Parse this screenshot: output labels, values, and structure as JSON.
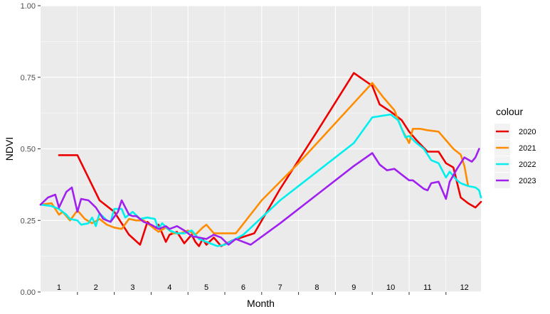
{
  "chart_data": {
    "type": "line",
    "xlabel": "Month",
    "ylabel": "NDVI",
    "ylim": [
      0,
      1
    ],
    "y_ticks": [
      "0.00",
      "0.25",
      "0.50",
      "0.75",
      "1.00"
    ],
    "y_tick_values": [
      0,
      0.25,
      0.5,
      0.75,
      1
    ],
    "xlim": [
      0.5,
      12.45
    ],
    "month_labels": [
      "1",
      "2",
      "3",
      "4",
      "5",
      "6",
      "7",
      "8",
      "9",
      "10",
      "11",
      "12"
    ],
    "legend_title": "colour",
    "legend_position": "right",
    "grid": true,
    "background": "#ebebeb",
    "series": [
      {
        "name": "2020",
        "color": "#ee0000",
        "x": [
          1.0,
          1.5,
          2.1,
          2.5,
          2.9,
          3.2,
          3.4,
          3.6,
          3.7,
          3.9,
          4.0,
          4.1,
          4.2,
          4.4,
          4.6,
          4.7,
          4.8,
          4.9,
          5.0,
          5.2,
          5.4,
          5.7,
          6.3,
          7.0,
          8.0,
          9.0,
          9.5,
          9.7,
          10.0,
          10.3,
          10.5,
          10.7,
          11.0,
          11.3,
          11.5,
          11.7,
          11.9,
          12.1,
          12.3,
          12.45
        ],
        "y": [
          0.478,
          0.478,
          0.32,
          0.28,
          0.2,
          0.165,
          0.245,
          0.22,
          0.235,
          0.175,
          0.2,
          0.205,
          0.21,
          0.17,
          0.2,
          0.175,
          0.16,
          0.185,
          0.165,
          0.19,
          0.16,
          0.18,
          0.205,
          0.36,
          0.56,
          0.765,
          0.72,
          0.655,
          0.63,
          0.6,
          0.56,
          0.53,
          0.49,
          0.49,
          0.45,
          0.435,
          0.33,
          0.31,
          0.295,
          0.315
        ]
      },
      {
        "name": "2021",
        "color": "#ff8c00",
        "x": [
          0.5,
          0.8,
          1.0,
          1.1,
          1.3,
          1.5,
          1.7,
          1.9,
          2.1,
          2.3,
          2.5,
          2.7,
          2.9,
          3.1,
          3.3,
          3.5,
          3.7,
          3.9,
          4.1,
          4.3,
          4.5,
          4.7,
          4.9,
          5.0,
          5.2,
          5.4,
          5.8,
          6.5,
          7.5,
          8.5,
          9.5,
          9.8,
          10.1,
          10.3,
          10.5,
          10.6,
          10.8,
          11.0,
          11.3,
          11.5,
          11.7,
          11.9,
          12.0,
          12.1
        ],
        "y": [
          0.305,
          0.31,
          0.27,
          0.28,
          0.25,
          0.285,
          0.255,
          0.24,
          0.255,
          0.235,
          0.225,
          0.22,
          0.255,
          0.25,
          0.25,
          0.23,
          0.21,
          0.225,
          0.205,
          0.205,
          0.215,
          0.2,
          0.225,
          0.235,
          0.205,
          0.205,
          0.205,
          0.32,
          0.45,
          0.59,
          0.73,
          0.68,
          0.635,
          0.57,
          0.52,
          0.57,
          0.57,
          0.565,
          0.56,
          0.53,
          0.5,
          0.48,
          0.44,
          0.37
        ]
      },
      {
        "name": "2022",
        "color": "#00eeee",
        "x": [
          0.5,
          0.8,
          1.0,
          1.2,
          1.3,
          1.5,
          1.6,
          1.8,
          1.9,
          2.0,
          2.1,
          2.3,
          2.4,
          2.5,
          2.7,
          2.8,
          3.0,
          3.2,
          3.4,
          3.6,
          3.7,
          3.8,
          4.0,
          4.2,
          4.4,
          4.6,
          4.8,
          5.0,
          5.2,
          5.3,
          5.5,
          6.0,
          7.0,
          8.0,
          9.0,
          9.5,
          10.0,
          10.2,
          10.4,
          10.5,
          10.7,
          10.9,
          11.1,
          11.3,
          11.5,
          11.6,
          11.8,
          11.9,
          12.1,
          12.3,
          12.4,
          12.45
        ],
        "y": [
          0.305,
          0.3,
          0.29,
          0.27,
          0.255,
          0.25,
          0.235,
          0.24,
          0.26,
          0.23,
          0.275,
          0.25,
          0.245,
          0.29,
          0.29,
          0.26,
          0.28,
          0.255,
          0.26,
          0.255,
          0.22,
          0.24,
          0.215,
          0.205,
          0.205,
          0.215,
          0.185,
          0.175,
          0.165,
          0.16,
          0.165,
          0.2,
          0.32,
          0.42,
          0.52,
          0.61,
          0.62,
          0.6,
          0.54,
          0.545,
          0.52,
          0.5,
          0.46,
          0.45,
          0.4,
          0.42,
          0.39,
          0.38,
          0.37,
          0.365,
          0.355,
          0.33
        ]
      },
      {
        "name": "2023",
        "color": "#a020f0",
        "x": [
          0.5,
          0.7,
          0.9,
          1.0,
          1.2,
          1.35,
          1.5,
          1.6,
          1.8,
          2.0,
          2.2,
          2.4,
          2.6,
          2.7,
          2.9,
          3.0,
          3.1,
          3.3,
          3.5,
          3.7,
          3.9,
          4.0,
          4.2,
          4.4,
          4.6,
          4.8,
          5.0,
          5.2,
          5.4,
          5.6,
          5.8,
          6.2,
          7.0,
          8.0,
          9.0,
          9.5,
          9.7,
          9.9,
          10.1,
          10.3,
          10.5,
          10.6,
          10.9,
          11.0,
          11.1,
          11.3,
          11.5,
          11.6,
          11.8,
          12.0,
          12.2,
          12.3,
          12.4
        ],
        "y": [
          0.305,
          0.33,
          0.34,
          0.295,
          0.35,
          0.365,
          0.28,
          0.325,
          0.32,
          0.295,
          0.255,
          0.245,
          0.28,
          0.32,
          0.27,
          0.265,
          0.265,
          0.245,
          0.235,
          0.22,
          0.23,
          0.22,
          0.23,
          0.215,
          0.195,
          0.19,
          0.185,
          0.2,
          0.19,
          0.165,
          0.185,
          0.165,
          0.24,
          0.34,
          0.44,
          0.485,
          0.445,
          0.425,
          0.43,
          0.41,
          0.39,
          0.39,
          0.36,
          0.355,
          0.38,
          0.385,
          0.325,
          0.385,
          0.43,
          0.47,
          0.455,
          0.47,
          0.5
        ]
      }
    ]
  }
}
